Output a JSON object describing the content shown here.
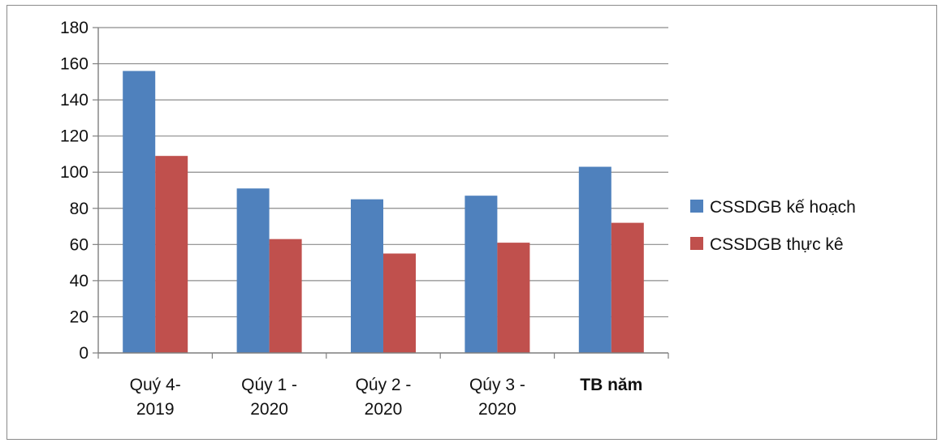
{
  "chart_data": {
    "type": "bar",
    "categories": [
      [
        "Quý 4-",
        "2019"
      ],
      [
        "Qúy 1 -",
        "2020"
      ],
      [
        "Qúy 2 -",
        "2020"
      ],
      [
        "Qúy 3 -",
        "2020"
      ],
      [
        "TB năm"
      ]
    ],
    "category_bold": [
      false,
      false,
      false,
      false,
      true
    ],
    "series": [
      {
        "name": "CSSDGB kế hoạch",
        "color": "#4f81bd",
        "values": [
          156,
          91,
          85,
          87,
          103
        ]
      },
      {
        "name": "CSSDGB thực kê",
        "color": "#c0504d",
        "values": [
          109,
          63,
          55,
          61,
          72
        ]
      }
    ],
    "ylim": [
      0,
      180
    ],
    "yticks": [
      0,
      20,
      40,
      60,
      80,
      100,
      120,
      140,
      160,
      180
    ],
    "grid": true,
    "legend_position": "right",
    "title": "",
    "xlabel": "",
    "ylabel": ""
  }
}
